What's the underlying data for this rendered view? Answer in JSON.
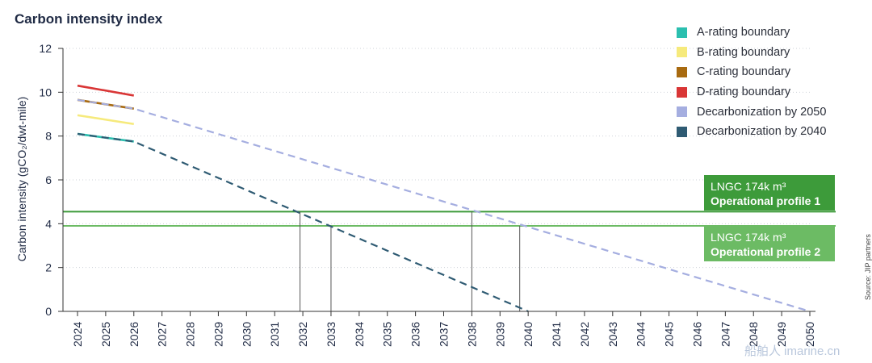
{
  "title": "Carbon intensity index",
  "ylabel": "Carbon intensity (gCO₂/dwt-mile)",
  "source": "Source: JIP partners",
  "watermark": "船舶人 imarine.cn",
  "legend": [
    {
      "label": "A-rating boundary",
      "color": "#2bbfaf"
    },
    {
      "label": "B-rating boundary",
      "color": "#f6ea7c"
    },
    {
      "label": "C-rating boundary",
      "color": "#a86a10"
    },
    {
      "label": "D-rating boundary",
      "color": "#d93636"
    },
    {
      "label": "Decarbonization by 2050",
      "color": "#a5aee0"
    },
    {
      "label": "Decarbonization by 2040",
      "color": "#2f5b73"
    }
  ],
  "profiles": [
    {
      "line1": "LNGC 174k m³",
      "line2": "Operational profile 1",
      "value": 4.55,
      "color": "#3d9b3a"
    },
    {
      "line1": "LNGC 174k m³",
      "line2": "Operational profile 2",
      "value": 3.9,
      "color": "#6cbb64"
    }
  ],
  "chart_data": {
    "type": "line",
    "title": "Carbon intensity index",
    "ylabel": "Carbon intensity (gCO₂/dwt-mile)",
    "xlabel": "",
    "x_ticks": [
      2024,
      2025,
      2026,
      2027,
      2028,
      2029,
      2030,
      2031,
      2032,
      2033,
      2034,
      2035,
      2036,
      2037,
      2038,
      2039,
      2040,
      2041,
      2042,
      2043,
      2044,
      2045,
      2046,
      2047,
      2048,
      2049,
      2050
    ],
    "xlim": [
      2024,
      2050
    ],
    "y_ticks": [
      0,
      2,
      4,
      6,
      8,
      10,
      12
    ],
    "ylim": [
      0,
      12
    ],
    "grid": "horizontal-dotted",
    "legend_position": "top-right",
    "series": [
      {
        "name": "A-rating boundary",
        "color": "#2bbfaf",
        "style": "solid",
        "x": [
          2024,
          2026
        ],
        "y": [
          8.1,
          7.75
        ]
      },
      {
        "name": "B-rating boundary",
        "color": "#f6ea7c",
        "style": "solid",
        "x": [
          2024,
          2026
        ],
        "y": [
          8.95,
          8.55
        ]
      },
      {
        "name": "C-rating boundary",
        "color": "#a86a10",
        "style": "solid",
        "x": [
          2024,
          2026
        ],
        "y": [
          9.65,
          9.25
        ]
      },
      {
        "name": "D-rating boundary",
        "color": "#d93636",
        "style": "solid",
        "x": [
          2024,
          2026
        ],
        "y": [
          10.3,
          9.85
        ]
      },
      {
        "name": "Decarbonization by 2050",
        "color": "#a5aee0",
        "style": "dashed",
        "x": [
          2024,
          2026,
          2050
        ],
        "y": [
          9.65,
          9.25,
          0
        ]
      },
      {
        "name": "Decarbonization by 2040",
        "color": "#2f5b73",
        "style": "dashed",
        "x": [
          2024,
          2026,
          2040
        ],
        "y": [
          8.1,
          7.75,
          0
        ]
      }
    ],
    "reference_lines": [
      {
        "name": "Operational profile 1",
        "y": 4.55,
        "color": "#3d9b3a"
      },
      {
        "name": "Operational profile 2",
        "y": 3.9,
        "color": "#6cbb64"
      }
    ],
    "drop_lines": [
      {
        "x": 2031.9,
        "y": 4.55
      },
      {
        "x": 2033.0,
        "y": 3.9
      },
      {
        "x": 2038.0,
        "y": 4.55
      },
      {
        "x": 2039.7,
        "y": 3.9
      }
    ]
  }
}
